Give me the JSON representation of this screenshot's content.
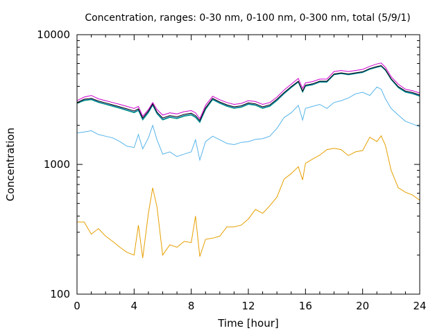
{
  "chart_data": {
    "type": "line",
    "title": "Concentration, ranges: 0-30 nm, 0-100 nm, 0-300 nm, total (5/9/1)",
    "xlabel": "Time [hour]",
    "ylabel": "Concentration",
    "xlim": [
      0,
      24
    ],
    "ylim": [
      100,
      10000
    ],
    "yscale": "log",
    "grid": false,
    "x_ticks": [
      0,
      4,
      8,
      12,
      16,
      20,
      24
    ],
    "y_ticks": [
      100,
      1000,
      10000
    ],
    "x": [
      0,
      0.5,
      1,
      1.5,
      2,
      2.5,
      3,
      3.5,
      4,
      4.3,
      4.6,
      5,
      5.3,
      5.6,
      6,
      6.5,
      7,
      7.5,
      8,
      8.3,
      8.6,
      9,
      9.5,
      10,
      10.5,
      11,
      11.5,
      12,
      12.5,
      13,
      13.5,
      14,
      14.5,
      15,
      15.5,
      15.8,
      16,
      16.5,
      17,
      17.5,
      18,
      18.5,
      19,
      19.5,
      20,
      20.5,
      21,
      21.3,
      21.6,
      22,
      22.5,
      23,
      23.5,
      24
    ],
    "series": [
      {
        "color": "#e69f00",
        "values": [
          360,
          360,
          290,
          320,
          280,
          255,
          230,
          210,
          200,
          340,
          190,
          420,
          660,
          470,
          200,
          240,
          230,
          255,
          250,
          400,
          195,
          265,
          270,
          280,
          330,
          330,
          340,
          380,
          450,
          420,
          480,
          560,
          770,
          850,
          960,
          760,
          1020,
          1100,
          1180,
          1300,
          1330,
          1300,
          1170,
          1250,
          1280,
          1620,
          1500,
          1660,
          1400,
          900,
          660,
          610,
          580,
          530
        ]
      },
      {
        "color": "#56b4e9",
        "values": [
          1750,
          1780,
          1820,
          1700,
          1650,
          1600,
          1500,
          1380,
          1350,
          1700,
          1320,
          1600,
          2000,
          1550,
          1200,
          1250,
          1150,
          1200,
          1250,
          1550,
          1080,
          1500,
          1650,
          1550,
          1450,
          1420,
          1480,
          1500,
          1560,
          1580,
          1650,
          1900,
          2300,
          2500,
          2850,
          2200,
          2700,
          2800,
          2900,
          2700,
          3000,
          3100,
          3250,
          3500,
          3600,
          3400,
          3950,
          3800,
          3200,
          2700,
          2400,
          2150,
          2050,
          1950
        ]
      },
      {
        "color": "#009e73",
        "values": [
          2950,
          3100,
          3150,
          3000,
          2900,
          2800,
          2700,
          2600,
          2500,
          2600,
          2200,
          2500,
          2850,
          2450,
          2200,
          2300,
          2250,
          2350,
          2400,
          2300,
          2100,
          2650,
          3150,
          2950,
          2800,
          2700,
          2750,
          2900,
          2850,
          2700,
          2800,
          3100,
          3500,
          3900,
          4300,
          3600,
          4000,
          4100,
          4300,
          4300,
          4900,
          5000,
          4900,
          5000,
          5100,
          5400,
          5600,
          5700,
          5300,
          4500,
          3900,
          3600,
          3500,
          3350
        ]
      },
      {
        "color": "#0072b2",
        "values": [
          2980,
          3130,
          3180,
          3030,
          2930,
          2830,
          2730,
          2630,
          2530,
          2630,
          2230,
          2530,
          2880,
          2480,
          2230,
          2330,
          2280,
          2380,
          2430,
          2330,
          2130,
          2680,
          3180,
          2980,
          2830,
          2730,
          2780,
          2930,
          2880,
          2730,
          2830,
          3130,
          3530,
          3930,
          4330,
          3630,
          4030,
          4130,
          4330,
          4330,
          4930,
          5030,
          4930,
          5030,
          5130,
          5430,
          5630,
          5730,
          5330,
          4530,
          3930,
          3630,
          3530,
          3380
        ]
      },
      {
        "color": "#000000",
        "values": [
          3000,
          3180,
          3230,
          3080,
          2980,
          2880,
          2780,
          2680,
          2580,
          2680,
          2280,
          2580,
          2930,
          2530,
          2280,
          2380,
          2330,
          2430,
          2480,
          2380,
          2180,
          2730,
          3230,
          3030,
          2880,
          2780,
          2830,
          2980,
          2930,
          2780,
          2880,
          3180,
          3580,
          3980,
          4380,
          3680,
          4080,
          4180,
          4380,
          4380,
          4980,
          5080,
          4980,
          5080,
          5180,
          5480,
          5680,
          5780,
          5380,
          4580,
          3980,
          3680,
          3580,
          3430
        ]
      },
      {
        "color": "#cc00cc",
        "values": [
          3100,
          3300,
          3400,
          3200,
          3100,
          3000,
          2900,
          2800,
          2700,
          2800,
          2350,
          2650,
          3000,
          2650,
          2400,
          2500,
          2450,
          2550,
          2600,
          2500,
          2250,
          2850,
          3350,
          3150,
          3000,
          2900,
          2950,
          3100,
          3050,
          2900,
          3000,
          3300,
          3750,
          4150,
          4600,
          3850,
          4250,
          4350,
          4550,
          4550,
          5200,
          5300,
          5200,
          5300,
          5400,
          5700,
          5950,
          6050,
          5600,
          4750,
          4150,
          3800,
          3700,
          3550
        ]
      }
    ]
  }
}
